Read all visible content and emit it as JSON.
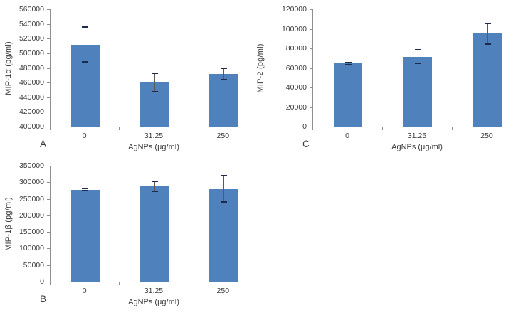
{
  "colors": {
    "bar": "#4f81bd",
    "error_line": "#595959",
    "error_cap": "#1f2b4e",
    "axis": "#8f8f8f",
    "text": "#3a3a3a",
    "background": "#ffffff"
  },
  "chart_data": [
    {
      "panel": "A",
      "type": "bar",
      "categories": [
        "0",
        "31.25",
        "250"
      ],
      "values": [
        512000,
        460000,
        472000
      ],
      "errors": [
        24000,
        12500,
        8000
      ],
      "xlabel": "AgNPs (µg/ml)",
      "ylabel": "MIP-1α (pg/ml)",
      "ylim": [
        400000,
        560000
      ],
      "ytick_step": 20000,
      "ytick_labels": [
        "400000",
        "420000",
        "440000",
        "460000",
        "480000",
        "500000",
        "520000",
        "540000",
        "560000"
      ],
      "grid": false,
      "legend": "none"
    },
    {
      "panel": "B",
      "type": "bar",
      "categories": [
        "0",
        "31.25",
        "250"
      ],
      "values": [
        278000,
        288000,
        280000
      ],
      "errors": [
        2500,
        15000,
        39000
      ],
      "xlabel": "AgNPs (µg/ml)",
      "ylabel": "MIP-1β (pg/ml)",
      "ylim": [
        0,
        350000
      ],
      "ytick_step": 50000,
      "ytick_labels": [
        "0",
        "50000",
        "100000",
        "150000",
        "200000",
        "250000",
        "300000",
        "350000"
      ],
      "grid": false,
      "legend": "none"
    },
    {
      "panel": "C",
      "type": "bar",
      "categories": [
        "0",
        "31.25",
        "250"
      ],
      "values": [
        64500,
        71500,
        95000
      ],
      "errors": [
        1000,
        7000,
        10500
      ],
      "xlabel": "AgNPs (µg/ml)",
      "ylabel": "MIP-2 (pg/ml)",
      "ylim": [
        0,
        120000
      ],
      "ytick_step": 20000,
      "ytick_labels": [
        "0",
        "20000",
        "40000",
        "60000",
        "80000",
        "100000",
        "120000"
      ],
      "grid": false,
      "legend": "none"
    }
  ]
}
